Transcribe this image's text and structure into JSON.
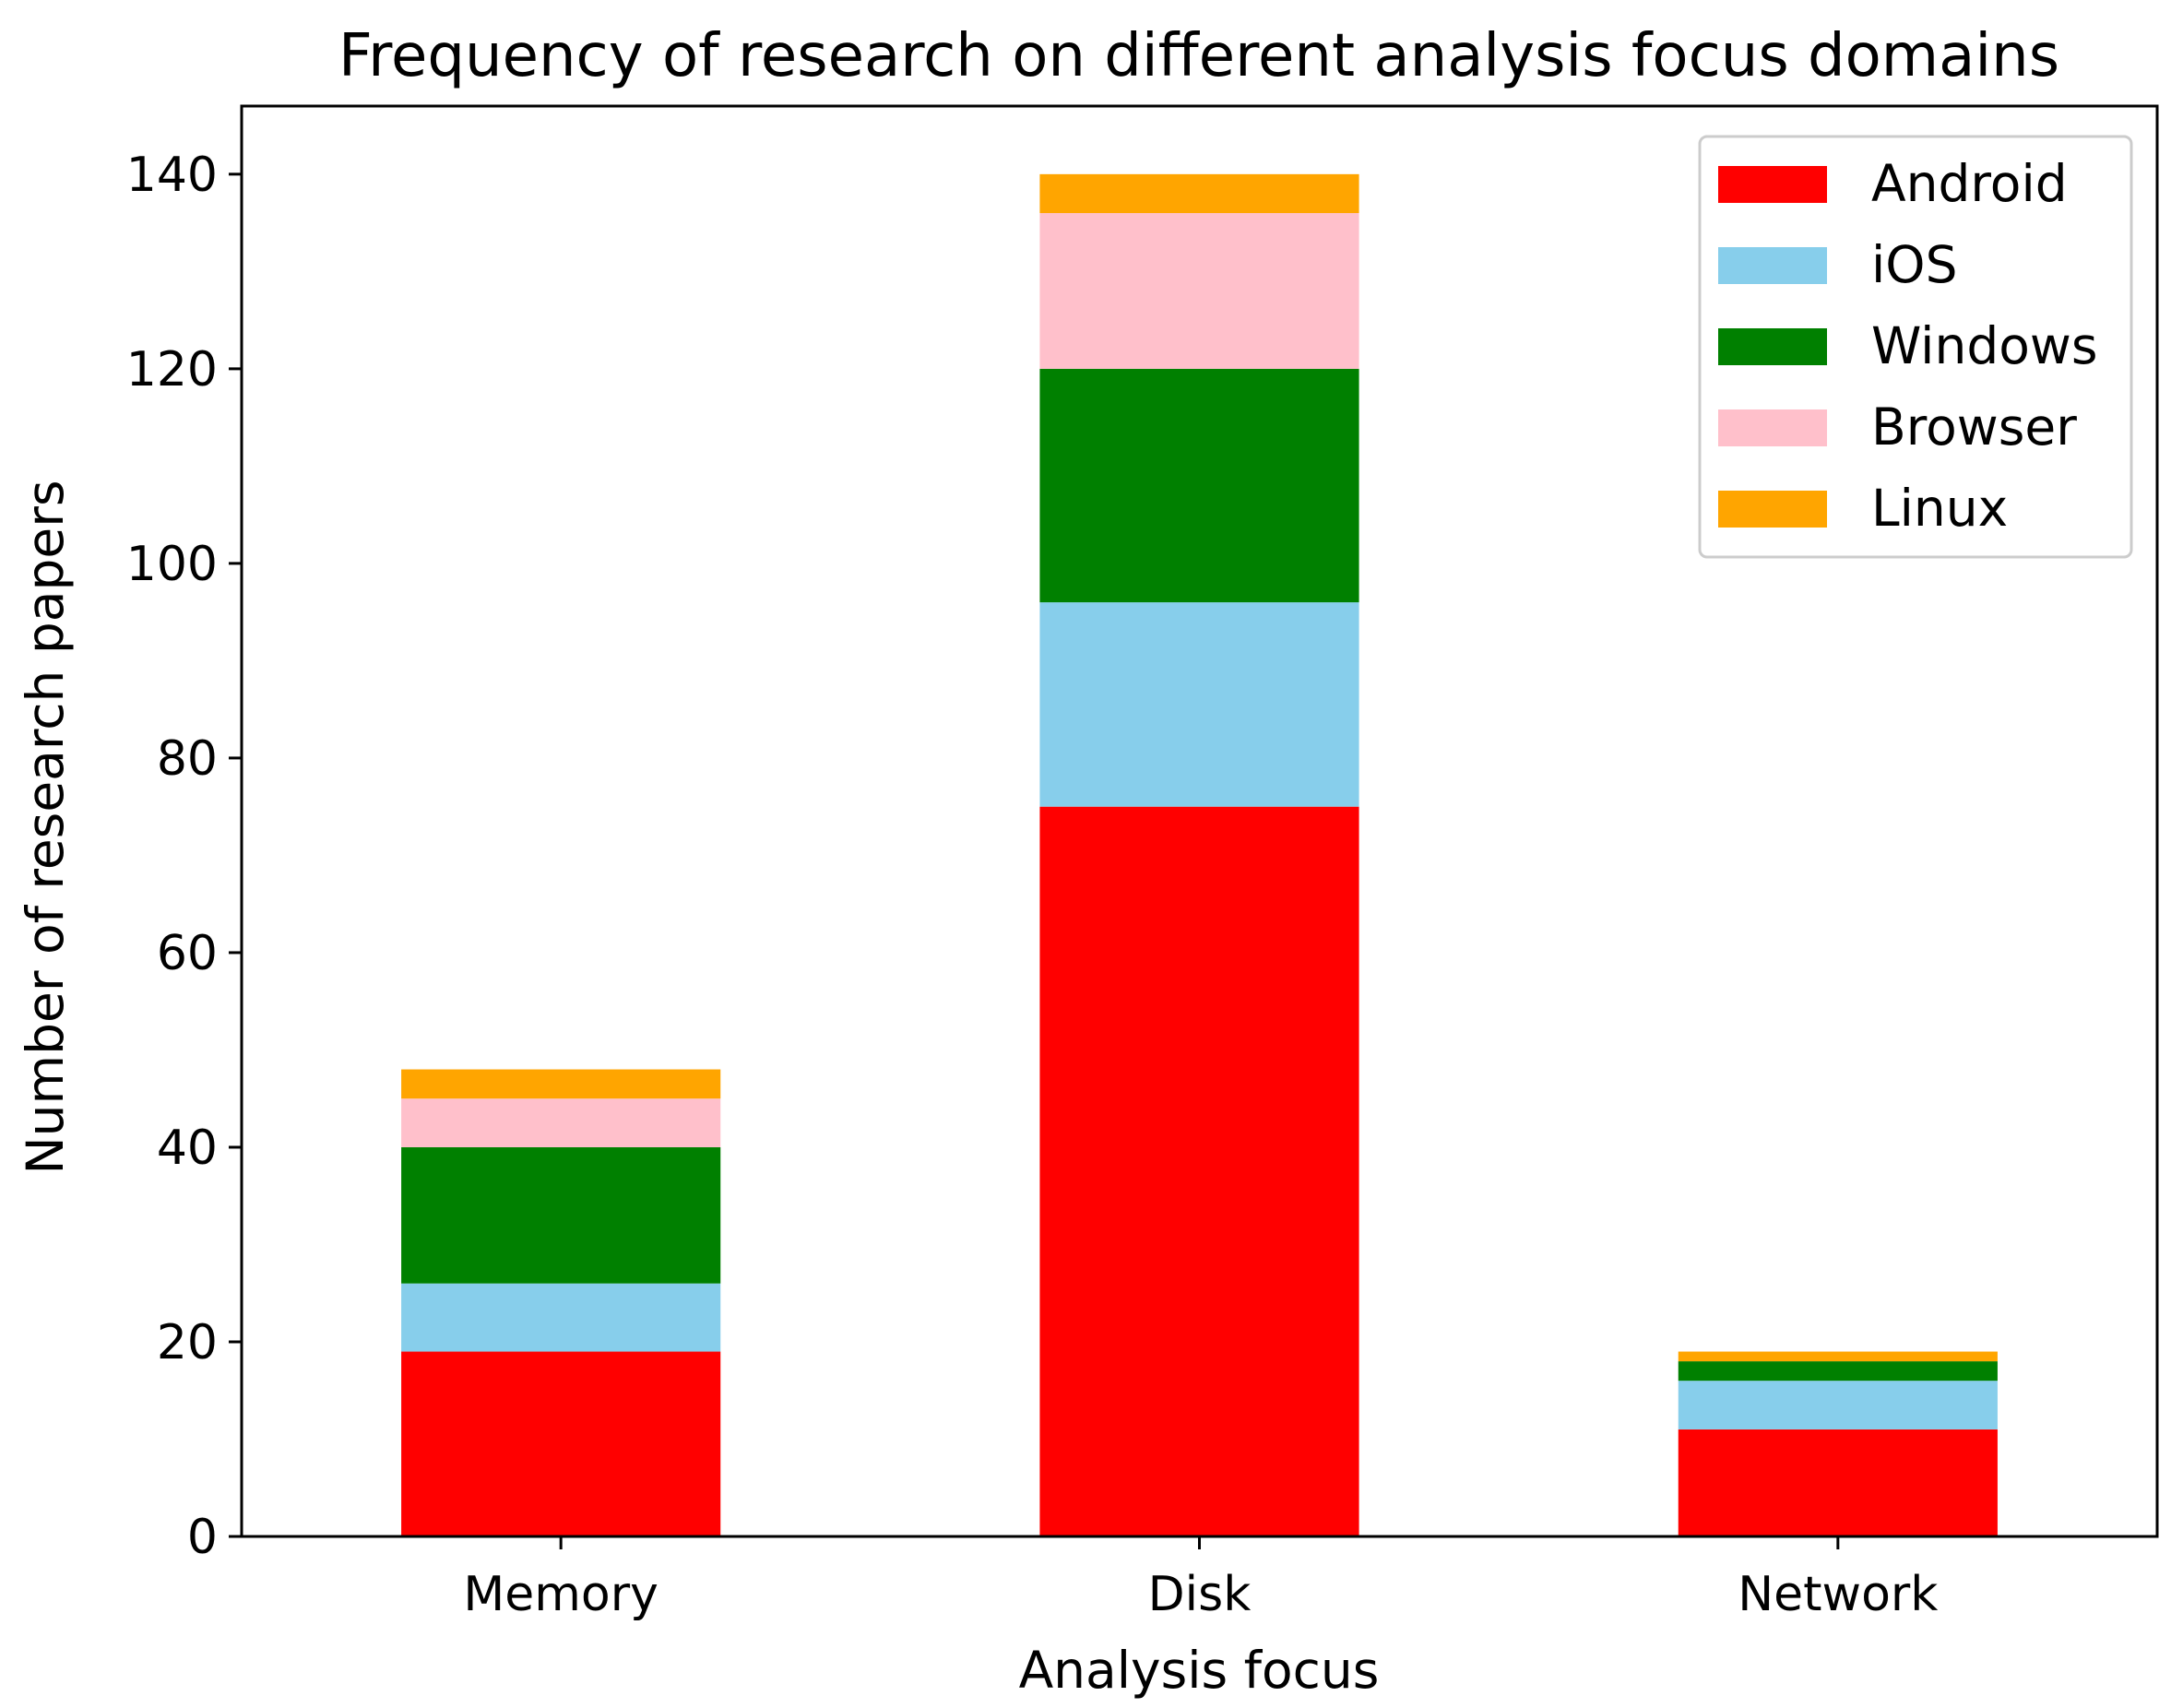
{
  "chart_data": {
    "type": "bar",
    "stacked": true,
    "title": "Frequency of research on different analysis focus domains",
    "xlabel": "Analysis focus",
    "ylabel": "Number of research papers",
    "categories": [
      "Memory",
      "Disk",
      "Network"
    ],
    "series": [
      {
        "name": "Android",
        "color": "#ff0000",
        "values": [
          19,
          75,
          11
        ]
      },
      {
        "name": "iOS",
        "color": "#87ceeb",
        "values": [
          7,
          21,
          5
        ]
      },
      {
        "name": "Windows",
        "color": "#008000",
        "values": [
          14,
          24,
          2
        ]
      },
      {
        "name": "Browser",
        "color": "#ffc0cb",
        "values": [
          5,
          16,
          0
        ]
      },
      {
        "name": "Linux",
        "color": "#ffa500",
        "values": [
          3,
          4,
          1
        ]
      }
    ],
    "ylim": [
      0,
      147
    ],
    "yticks": [
      0,
      20,
      40,
      60,
      80,
      100,
      120,
      140
    ],
    "grid": false,
    "legend_position": "top-right"
  }
}
